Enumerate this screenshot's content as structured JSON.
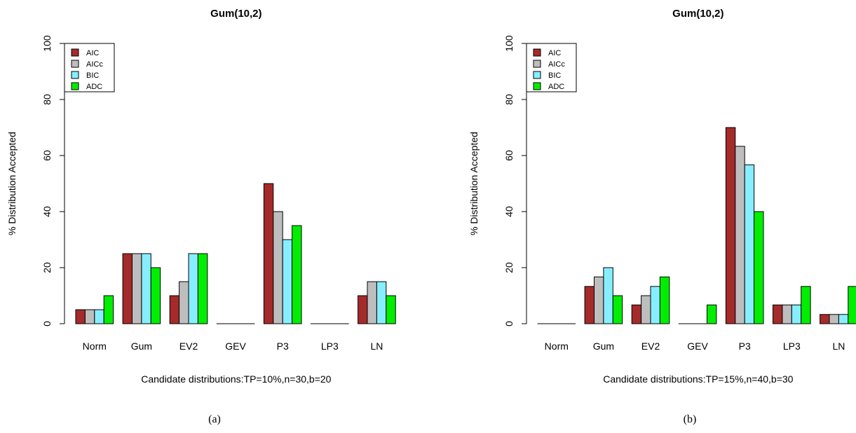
{
  "figure": {
    "panels": [
      {
        "caption": "(a)"
      },
      {
        "caption": "(b)"
      }
    ]
  },
  "chart_data": [
    {
      "type": "bar",
      "title": "Gum(10,2)",
      "xlabel": "Candidate distributions:TP=10%,n=30,b=20",
      "ylabel": "% Distribution Accepted",
      "ylim": [
        0,
        100
      ],
      "yticks": [
        0,
        20,
        40,
        60,
        80,
        100
      ],
      "categories": [
        "Norm",
        "Gum",
        "EV2",
        "GEV",
        "P3",
        "LP3",
        "LN"
      ],
      "legend_position": "top-left",
      "grid": false,
      "series": [
        {
          "name": "AIC",
          "color": "#A52A2A",
          "values": [
            5,
            25,
            10,
            0,
            50,
            0,
            10
          ]
        },
        {
          "name": "AICc",
          "color": "#BEBEBE",
          "values": [
            5,
            25,
            15,
            0,
            40,
            0,
            15
          ]
        },
        {
          "name": "BIC",
          "color": "#87EEFF",
          "values": [
            5,
            25,
            25,
            0,
            30,
            0,
            15
          ]
        },
        {
          "name": "ADC",
          "color": "#00EE00",
          "values": [
            10,
            20,
            25,
            0,
            35,
            0,
            10
          ]
        }
      ]
    },
    {
      "type": "bar",
      "title": "Gum(10,2)",
      "xlabel": "Candidate distributions:TP=15%,n=40,b=30",
      "ylabel": "% Distribution Accepted",
      "ylim": [
        0,
        100
      ],
      "yticks": [
        0,
        20,
        40,
        60,
        80,
        100
      ],
      "categories": [
        "Norm",
        "Gum",
        "EV2",
        "GEV",
        "P3",
        "LP3",
        "LN"
      ],
      "legend_position": "top-left",
      "grid": false,
      "series": [
        {
          "name": "AIC",
          "color": "#A52A2A",
          "values": [
            0,
            13.3,
            6.7,
            0,
            70,
            6.7,
            3.3
          ]
        },
        {
          "name": "AICc",
          "color": "#BEBEBE",
          "values": [
            0,
            16.7,
            10,
            0,
            63.3,
            6.7,
            3.3
          ]
        },
        {
          "name": "BIC",
          "color": "#87EEFF",
          "values": [
            0,
            20,
            13.3,
            0,
            56.7,
            6.7,
            3.3
          ]
        },
        {
          "name": "ADC",
          "color": "#00EE00",
          "values": [
            0,
            10,
            16.7,
            6.7,
            40,
            13.3,
            13.3
          ]
        }
      ]
    }
  ]
}
